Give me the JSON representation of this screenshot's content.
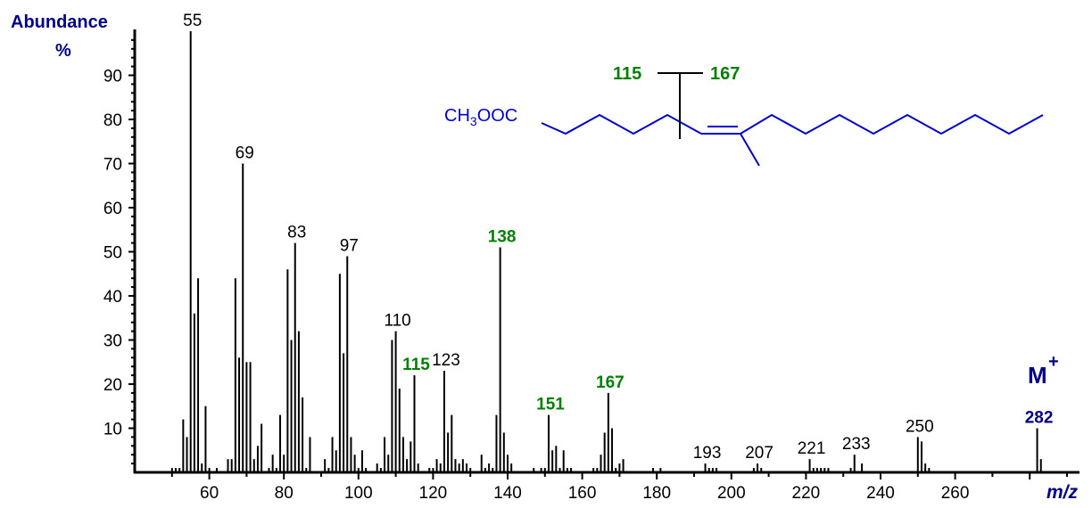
{
  "chart_data": {
    "type": "bar",
    "title": "",
    "xlabel": "m/z",
    "ylabel": "Abundance %",
    "xlim": [
      40,
      290
    ],
    "ylim": [
      0,
      100
    ],
    "x_ticks": [
      60,
      80,
      100,
      120,
      140,
      160,
      180,
      200,
      220,
      240,
      260
    ],
    "y_ticks": [
      10,
      20,
      30,
      40,
      50,
      60,
      70,
      80,
      90
    ],
    "grid": false,
    "molecular_ion_label": "M+",
    "peaks": [
      {
        "mz": 50,
        "y": 1
      },
      {
        "mz": 51,
        "y": 1
      },
      {
        "mz": 52,
        "y": 1
      },
      {
        "mz": 53,
        "y": 12
      },
      {
        "mz": 54,
        "y": 8
      },
      {
        "mz": 55,
        "y": 100
      },
      {
        "mz": 56,
        "y": 36
      },
      {
        "mz": 57,
        "y": 44
      },
      {
        "mz": 58,
        "y": 2
      },
      {
        "mz": 59,
        "y": 15
      },
      {
        "mz": 60,
        "y": 1
      },
      {
        "mz": 62,
        "y": 1
      },
      {
        "mz": 65,
        "y": 3
      },
      {
        "mz": 66,
        "y": 3
      },
      {
        "mz": 67,
        "y": 44
      },
      {
        "mz": 68,
        "y": 26
      },
      {
        "mz": 69,
        "y": 70
      },
      {
        "mz": 70,
        "y": 25
      },
      {
        "mz": 71,
        "y": 25
      },
      {
        "mz": 72,
        "y": 3
      },
      {
        "mz": 73,
        "y": 6
      },
      {
        "mz": 74,
        "y": 11
      },
      {
        "mz": 76,
        "y": 1
      },
      {
        "mz": 77,
        "y": 4
      },
      {
        "mz": 78,
        "y": 1
      },
      {
        "mz": 79,
        "y": 13
      },
      {
        "mz": 80,
        "y": 4
      },
      {
        "mz": 81,
        "y": 46
      },
      {
        "mz": 82,
        "y": 30
      },
      {
        "mz": 83,
        "y": 52
      },
      {
        "mz": 84,
        "y": 32
      },
      {
        "mz": 85,
        "y": 17
      },
      {
        "mz": 86,
        "y": 1
      },
      {
        "mz": 87,
        "y": 8
      },
      {
        "mz": 91,
        "y": 3
      },
      {
        "mz": 92,
        "y": 1
      },
      {
        "mz": 93,
        "y": 8
      },
      {
        "mz": 94,
        "y": 5
      },
      {
        "mz": 95,
        "y": 45
      },
      {
        "mz": 96,
        "y": 27
      },
      {
        "mz": 97,
        "y": 49
      },
      {
        "mz": 98,
        "y": 8
      },
      {
        "mz": 99,
        "y": 4
      },
      {
        "mz": 100,
        "y": 1
      },
      {
        "mz": 101,
        "y": 5
      },
      {
        "mz": 102,
        "y": 1
      },
      {
        "mz": 105,
        "y": 2
      },
      {
        "mz": 106,
        "y": 1
      },
      {
        "mz": 107,
        "y": 8
      },
      {
        "mz": 108,
        "y": 4
      },
      {
        "mz": 109,
        "y": 30
      },
      {
        "mz": 110,
        "y": 32
      },
      {
        "mz": 111,
        "y": 19
      },
      {
        "mz": 112,
        "y": 8
      },
      {
        "mz": 113,
        "y": 3
      },
      {
        "mz": 114,
        "y": 7
      },
      {
        "mz": 115,
        "y": 22
      },
      {
        "mz": 116,
        "y": 2
      },
      {
        "mz": 119,
        "y": 1
      },
      {
        "mz": 120,
        "y": 1
      },
      {
        "mz": 121,
        "y": 3
      },
      {
        "mz": 122,
        "y": 2
      },
      {
        "mz": 123,
        "y": 23
      },
      {
        "mz": 124,
        "y": 9
      },
      {
        "mz": 125,
        "y": 13
      },
      {
        "mz": 126,
        "y": 3
      },
      {
        "mz": 127,
        "y": 2
      },
      {
        "mz": 128,
        "y": 3
      },
      {
        "mz": 129,
        "y": 2
      },
      {
        "mz": 130,
        "y": 1
      },
      {
        "mz": 133,
        "y": 4
      },
      {
        "mz": 134,
        "y": 1
      },
      {
        "mz": 135,
        "y": 2
      },
      {
        "mz": 136,
        "y": 1
      },
      {
        "mz": 137,
        "y": 13
      },
      {
        "mz": 138,
        "y": 51
      },
      {
        "mz": 139,
        "y": 9
      },
      {
        "mz": 140,
        "y": 4
      },
      {
        "mz": 141,
        "y": 2
      },
      {
        "mz": 147,
        "y": 1
      },
      {
        "mz": 149,
        "y": 1
      },
      {
        "mz": 150,
        "y": 1
      },
      {
        "mz": 151,
        "y": 13
      },
      {
        "mz": 152,
        "y": 5
      },
      {
        "mz": 153,
        "y": 6
      },
      {
        "mz": 154,
        "y": 1
      },
      {
        "mz": 155,
        "y": 5
      },
      {
        "mz": 156,
        "y": 1
      },
      {
        "mz": 157,
        "y": 1
      },
      {
        "mz": 163,
        "y": 1
      },
      {
        "mz": 164,
        "y": 1
      },
      {
        "mz": 165,
        "y": 4
      },
      {
        "mz": 166,
        "y": 9
      },
      {
        "mz": 167,
        "y": 18
      },
      {
        "mz": 168,
        "y": 10
      },
      {
        "mz": 169,
        "y": 1
      },
      {
        "mz": 170,
        "y": 2
      },
      {
        "mz": 171,
        "y": 3
      },
      {
        "mz": 179,
        "y": 1
      },
      {
        "mz": 181,
        "y": 1
      },
      {
        "mz": 193,
        "y": 2
      },
      {
        "mz": 194,
        "y": 1
      },
      {
        "mz": 195,
        "y": 1
      },
      {
        "mz": 196,
        "y": 1
      },
      {
        "mz": 206,
        "y": 1
      },
      {
        "mz": 207,
        "y": 2
      },
      {
        "mz": 208,
        "y": 1
      },
      {
        "mz": 221,
        "y": 3
      },
      {
        "mz": 222,
        "y": 1
      },
      {
        "mz": 223,
        "y": 1
      },
      {
        "mz": 224,
        "y": 1
      },
      {
        "mz": 225,
        "y": 1
      },
      {
        "mz": 226,
        "y": 1
      },
      {
        "mz": 232,
        "y": 1
      },
      {
        "mz": 233,
        "y": 4
      },
      {
        "mz": 235,
        "y": 2
      },
      {
        "mz": 250,
        "y": 8
      },
      {
        "mz": 251,
        "y": 7
      },
      {
        "mz": 252,
        "y": 2
      },
      {
        "mz": 253,
        "y": 1
      },
      {
        "mz": 282,
        "y": 10
      },
      {
        "mz": 283,
        "y": 3
      }
    ],
    "annotations": [
      {
        "text": "55",
        "mz": 55,
        "color": "#000000",
        "bold": false
      },
      {
        "text": "69",
        "mz": 69,
        "color": "#000000",
        "bold": false
      },
      {
        "text": "83",
        "mz": 83,
        "color": "#000000",
        "bold": false
      },
      {
        "text": "97",
        "mz": 97,
        "color": "#000000",
        "bold": false
      },
      {
        "text": "110",
        "mz": 110,
        "color": "#000000",
        "bold": false
      },
      {
        "text": "115",
        "mz": 115,
        "color": "#008000",
        "bold": true
      },
      {
        "text": "123",
        "mz": 123,
        "color": "#000000",
        "bold": false
      },
      {
        "text": "138",
        "mz": 138,
        "color": "#008000",
        "bold": true
      },
      {
        "text": "151",
        "mz": 151,
        "color": "#008000",
        "bold": true
      },
      {
        "text": "167",
        "mz": 167,
        "color": "#008000",
        "bold": true
      },
      {
        "text": "193",
        "mz": 193,
        "color": "#000000",
        "bold": false
      },
      {
        "text": "207",
        "mz": 207,
        "color": "#000000",
        "bold": false
      },
      {
        "text": "221",
        "mz": 221,
        "color": "#000000",
        "bold": false
      },
      {
        "text": "233",
        "mz": 233,
        "color": "#000000",
        "bold": false
      },
      {
        "text": "250",
        "mz": 250,
        "color": "#000000",
        "bold": false
      },
      {
        "text": "282",
        "mz": 282,
        "color": "#00008b",
        "bold": true
      }
    ]
  },
  "labels": {
    "y_title_line1": "Abundance",
    "y_title_line2": "%",
    "x_title": "m/z",
    "molecular_ion": "M",
    "molecular_ion_sup": "+"
  },
  "structure": {
    "ester_group": "CH3OOC",
    "ester_prefix": "CH",
    "ester_sub": "3",
    "ester_suffix": "OOC",
    "fragment_left": "115",
    "fragment_right": "167",
    "line_color": "#0000cc",
    "fragment_color": "#008000"
  },
  "colors": {
    "axis": "#000000",
    "bars": "#000000",
    "axis_title": "#00008b",
    "highlight": "#008000"
  }
}
